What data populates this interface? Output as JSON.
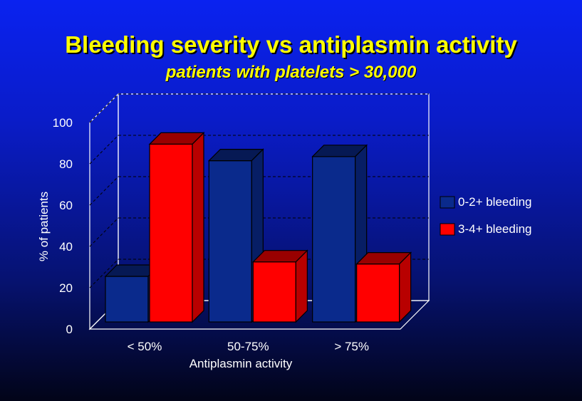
{
  "slide": {
    "title": "Bleeding severity vs antiplasmin activity",
    "subtitle": "patients with platelets > 30,000"
  },
  "colors": {
    "background_top": "#0a22f0",
    "background_bottom": "#020418",
    "title": "#ffff00",
    "series_blue": "#0a2a8c",
    "series_red": "#ff0000"
  },
  "chart_data": {
    "type": "bar",
    "style": "3d-clustered",
    "categories": [
      "< 50%",
      "50-75%",
      "> 75%"
    ],
    "series": [
      {
        "name": "0-2+ bleeding",
        "values": [
          20,
          76,
          78
        ],
        "color": "#0a2a8c"
      },
      {
        "name": "3-4+ bleeding",
        "values": [
          84,
          27,
          26
        ],
        "color": "#ff0000"
      }
    ],
    "xlabel": "Antiplasmin activity",
    "ylabel": "% of patients",
    "ylim": [
      0,
      100
    ],
    "yticks": [
      "0",
      "20",
      "40",
      "60",
      "80",
      "100"
    ],
    "grid": true,
    "legend_position": "right"
  }
}
